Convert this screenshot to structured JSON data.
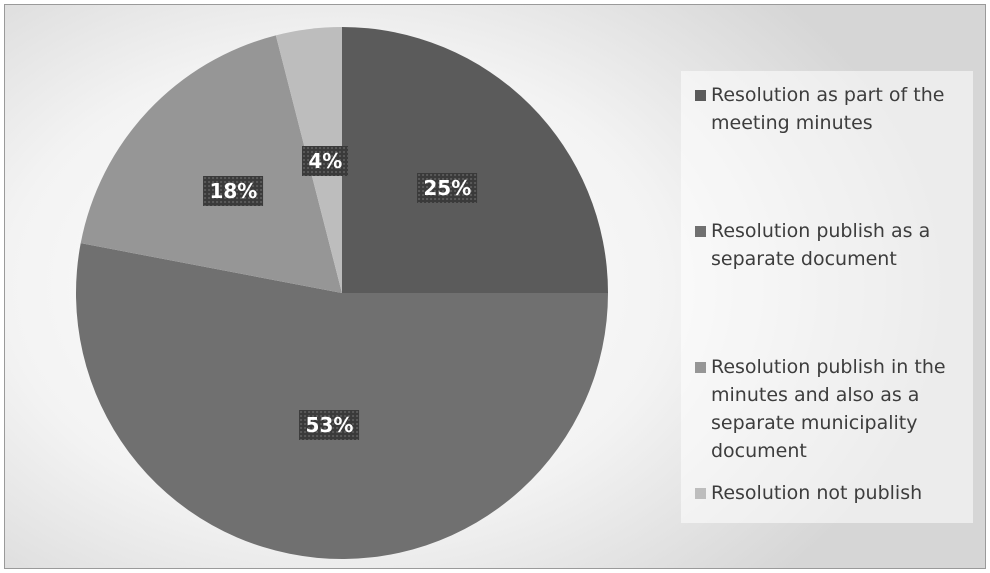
{
  "chart_data": {
    "type": "pie",
    "title": "",
    "slices": [
      {
        "label": "Resolution as part of the meeting minutes",
        "value": 25,
        "display": "25%",
        "color": "#5b5b5b"
      },
      {
        "label": "Resolution publish as a separate document",
        "value": 53,
        "display": "53%",
        "color": "#707070"
      },
      {
        "label": "Resolution publish in the minutes and also as a separate municipality document",
        "value": 18,
        "display": "18%",
        "color": "#969696"
      },
      {
        "label": "Resolution not publish",
        "value": 4,
        "display": "4%",
        "color": "#bdbdbd"
      }
    ],
    "legend_position": "right",
    "start_angle_deg": 0,
    "direction": "clockwise"
  },
  "legend": {
    "items": [
      {
        "label": "Resolution as part of the meeting minutes"
      },
      {
        "label": "Resolution publish as a separate document"
      },
      {
        "label": "Resolution publish in the minutes and also as a separate municipality document"
      },
      {
        "label": "Resolution not publish"
      }
    ]
  }
}
